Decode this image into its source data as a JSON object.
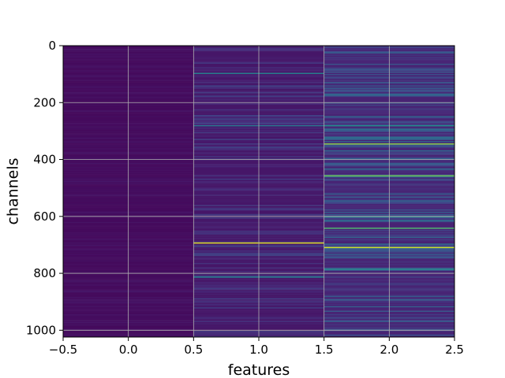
{
  "chart_data": {
    "type": "heatmap",
    "title": "",
    "xlabel": "features",
    "ylabel": "channels",
    "xlim": [
      -0.5,
      2.5
    ],
    "ylim": [
      1024,
      0
    ],
    "y_inverted": true,
    "grid": true,
    "colormap": "viridis",
    "colormap_stops": [
      "#440154",
      "#482777",
      "#3f4a8a",
      "#31678e",
      "#26838f",
      "#1f9d8a",
      "#6cce5a",
      "#b6de2b",
      "#fee825"
    ],
    "columns": [
      0,
      1,
      2
    ],
    "rows": 1024,
    "xticks": [
      -0.5,
      0.0,
      0.5,
      1.0,
      1.5,
      2.0,
      2.5
    ],
    "xtick_labels": [
      "−0.5",
      "0.0",
      "0.5",
      "1.0",
      "1.5",
      "2.0",
      "2.5"
    ],
    "yticks": [
      0,
      200,
      400,
      600,
      800,
      1000
    ],
    "ytick_labels": [
      "0",
      "200",
      "400",
      "600",
      "800",
      "1000"
    ],
    "column_profile": {
      "baseline": [
        0.03,
        0.07,
        0.11
      ],
      "spread": [
        0.04,
        0.16,
        0.3
      ]
    },
    "highlight_bands": [
      {
        "column": 1,
        "channel": 695,
        "value": 0.95
      },
      {
        "column": 1,
        "channel": 812,
        "value": 0.5
      },
      {
        "column": 1,
        "channel": 280,
        "value": 0.45
      },
      {
        "column": 1,
        "channel": 97,
        "value": 0.5
      },
      {
        "column": 2,
        "channel": 345,
        "value": 0.8
      },
      {
        "column": 2,
        "channel": 458,
        "value": 0.75
      },
      {
        "column": 2,
        "channel": 708,
        "value": 0.92
      },
      {
        "column": 2,
        "channel": 640,
        "value": 0.7
      },
      {
        "column": 2,
        "channel": 603,
        "value": 0.6
      },
      {
        "column": 2,
        "channel": 280,
        "value": 0.55
      },
      {
        "column": 2,
        "channel": 785,
        "value": 0.55
      }
    ]
  }
}
